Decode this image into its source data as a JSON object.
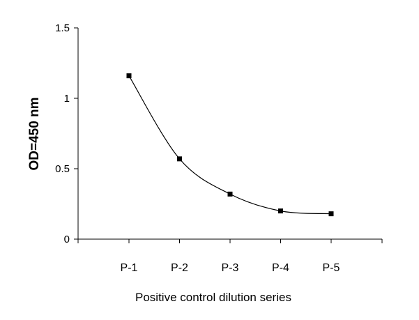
{
  "chart_data": {
    "type": "line",
    "title": "",
    "xlabel": "Positive control dilution series",
    "ylabel": "OD=450 nm",
    "categories": [
      "P-1",
      "P-2",
      "P-3",
      "P-4",
      "P-5"
    ],
    "series": [
      {
        "values": [
          1.16,
          0.57,
          0.32,
          0.2,
          0.18
        ],
        "color": "#000000",
        "marker": "square",
        "smooth": true
      }
    ],
    "ylim": [
      0,
      1.5
    ],
    "yticks": [
      0,
      0.5,
      1,
      1.5
    ],
    "ytick_labels": [
      "0",
      "0.5",
      "1",
      "1.5"
    ],
    "grid": false,
    "legend": "none"
  }
}
